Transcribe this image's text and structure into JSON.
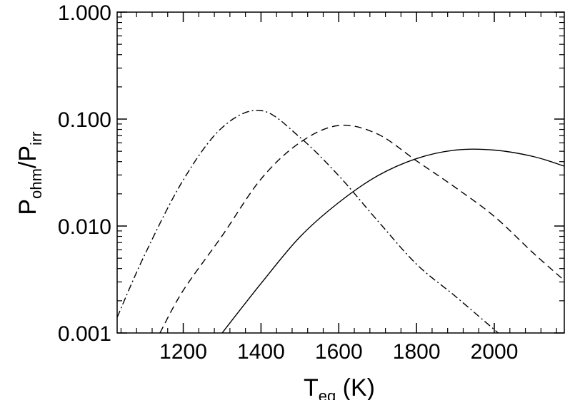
{
  "chart_data": {
    "type": "line",
    "title": "",
    "xlabel": {
      "main": "T",
      "sub": "eq",
      "suffix": " (K)"
    },
    "ylabel": {
      "num": "P",
      "num_sub": "ohm",
      "slash": "/",
      "den": "P",
      "den_sub": "irr"
    },
    "xlim": [
      1030,
      2180
    ],
    "ylim": [
      0.001,
      1.0
    ],
    "yscale": "log",
    "grid": false,
    "xticks": [
      1200,
      1400,
      1600,
      1800,
      2000
    ],
    "xtick_labels": [
      "1200",
      "1400",
      "1600",
      "1800",
      "2000"
    ],
    "yticks": [
      0.001,
      0.01,
      0.1,
      1.0
    ],
    "ytick_labels": [
      "0.001",
      "0.010",
      "0.100",
      "1.000"
    ],
    "series": [
      {
        "style": "solid",
        "x": [
          1300,
          1400,
          1500,
          1600,
          1700,
          1800,
          1900,
          2000,
          2100,
          2180
        ],
        "y": [
          0.001,
          0.0029,
          0.0079,
          0.0166,
          0.0295,
          0.0427,
          0.0513,
          0.0513,
          0.0447,
          0.0363
        ]
      },
      {
        "style": "dashed",
        "x": [
          1140,
          1200,
          1300,
          1400,
          1500,
          1600,
          1700,
          1800,
          1900,
          2000,
          2100,
          2180
        ],
        "y": [
          0.001,
          0.0025,
          0.0081,
          0.0275,
          0.0603,
          0.0871,
          0.0724,
          0.0407,
          0.0229,
          0.0123,
          0.0056,
          0.0031
        ]
      },
      {
        "style": "dashdot",
        "x": [
          1030,
          1100,
          1200,
          1300,
          1400,
          1500,
          1600,
          1700,
          1800,
          1900,
          2010
        ],
        "y": [
          0.0014,
          0.0053,
          0.0269,
          0.0832,
          0.1202,
          0.0676,
          0.0295,
          0.0112,
          0.0044,
          0.0022,
          0.001
        ]
      }
    ]
  }
}
